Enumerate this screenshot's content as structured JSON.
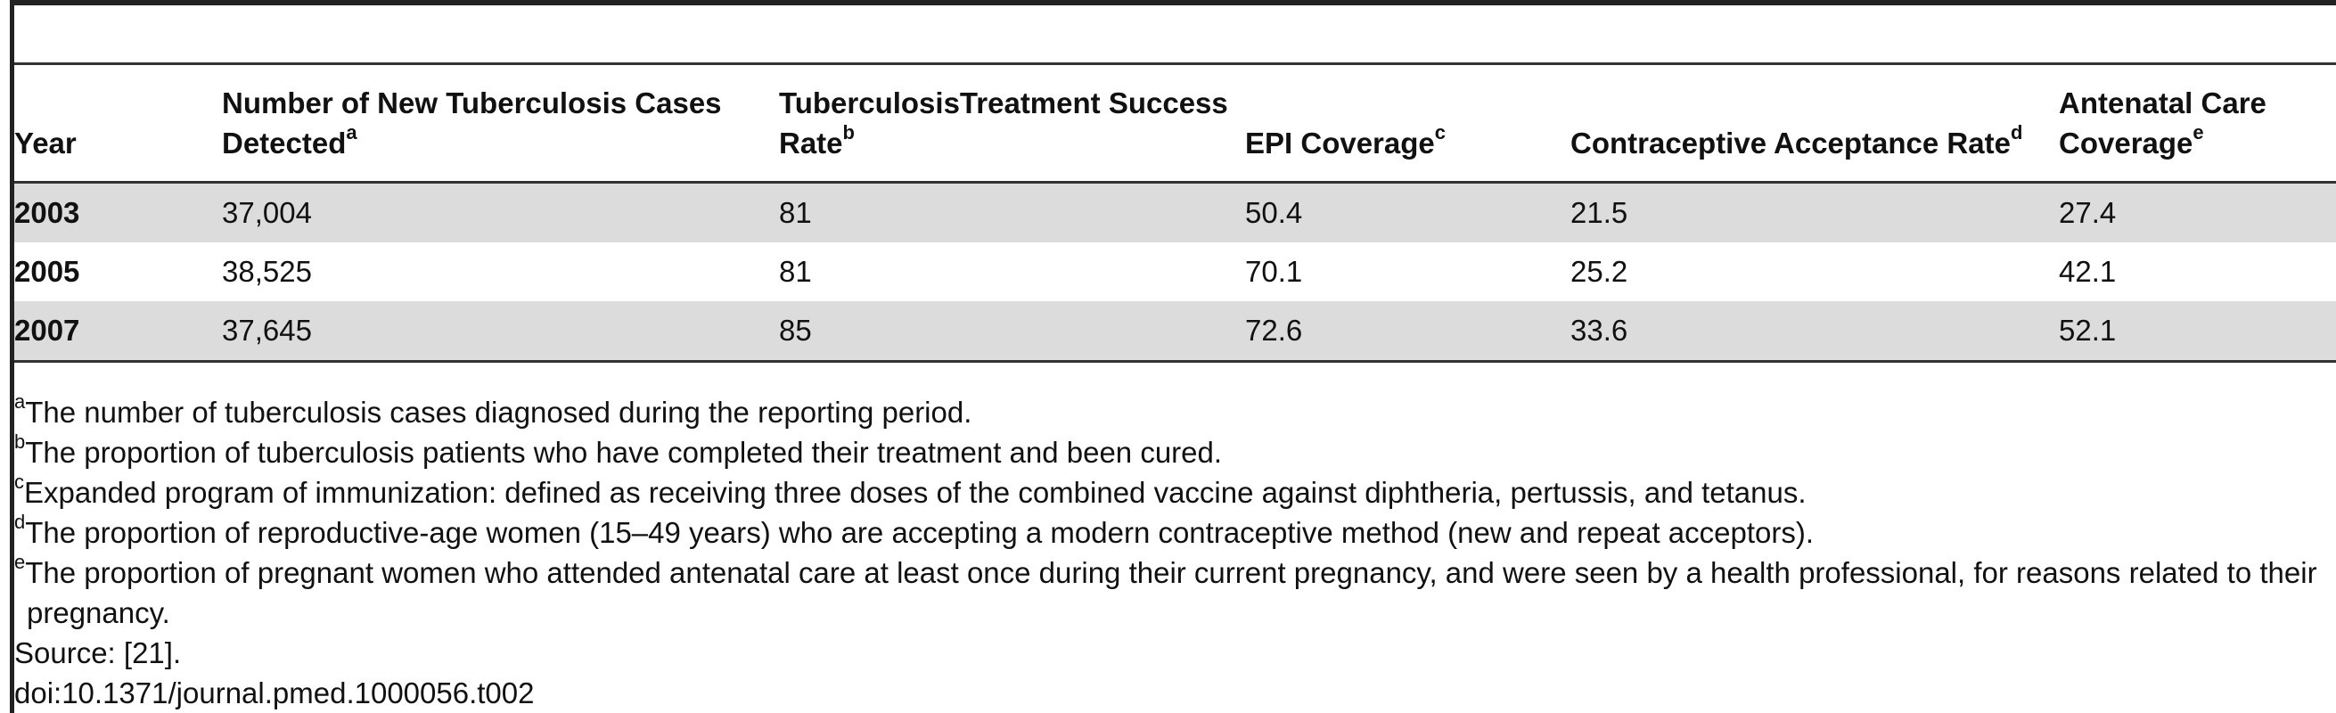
{
  "table": {
    "headers": [
      {
        "text": "Year",
        "sup": ""
      },
      {
        "text": "Number of New Tuberculosis Cases Detected",
        "sup": "a"
      },
      {
        "text": "TuberculosisTreatment Success Rate",
        "sup": "b"
      },
      {
        "text": "EPI Coverage",
        "sup": "c"
      },
      {
        "text": "Contraceptive Acceptance Rate",
        "sup": "d"
      },
      {
        "text": "Antenatal Care Coverage",
        "sup": "e"
      }
    ],
    "rows": [
      [
        "2003",
        "37,004",
        "81",
        "50.4",
        "21.5",
        "27.4"
      ],
      [
        "2005",
        "38,525",
        "81",
        "70.1",
        "25.2",
        "42.1"
      ],
      [
        "2007",
        "37,645",
        "85",
        "72.6",
        "33.6",
        "52.1"
      ]
    ]
  },
  "footnotes": [
    {
      "mark": "a",
      "text": "The number of tuberculosis cases diagnosed during the reporting period."
    },
    {
      "mark": "b",
      "text": "The proportion of tuberculosis patients who have completed their treatment and been cured."
    },
    {
      "mark": "c",
      "text": "Expanded program of immunization: defined as receiving three doses of the combined vaccine against diphtheria, pertussis, and tetanus."
    },
    {
      "mark": "d",
      "text": "The proportion of reproductive-age women (15–49 years) who are accepting a modern contraceptive method (new and repeat acceptors)."
    },
    {
      "mark": "e",
      "text": "The proportion of pregnant women who attended antenatal care at least once during their current pregnancy, and were seen by a health professional, for reasons related to their pregnancy."
    }
  ],
  "source": "Source: [21].",
  "doi": "doi:10.1371/journal.pmed.1000056.t002"
}
